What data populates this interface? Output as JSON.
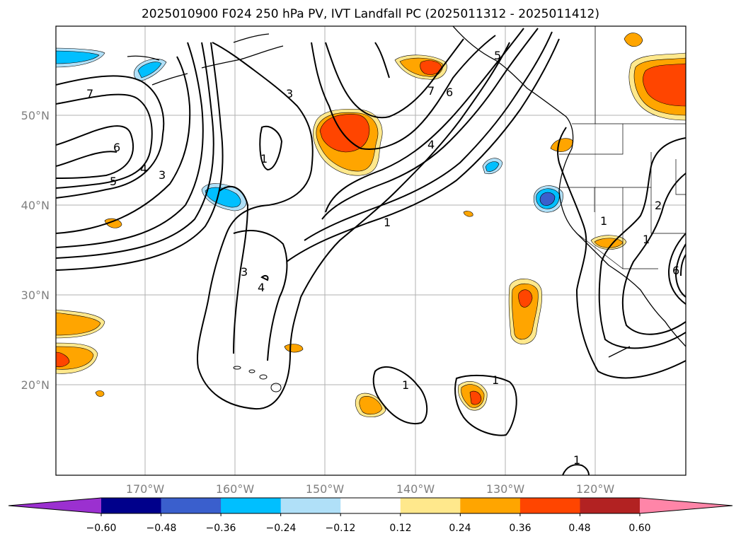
{
  "title": "2025010900 F024 250 hPa PV, IVT Landfall PC (2025011312 - 2025011412)",
  "map": {
    "lon_labels": [
      "170°W",
      "160°W",
      "150°W",
      "140°W",
      "130°W",
      "120°W"
    ],
    "lat_labels": [
      "50°N",
      "40°N",
      "30°N",
      "20°N"
    ],
    "contour_labels": [
      "7",
      "6",
      "5",
      "4",
      "3",
      "3",
      "1",
      "3",
      "4",
      "1",
      "4",
      "6",
      "7",
      "5",
      "1",
      "1",
      "1",
      "1",
      "1",
      "2",
      "6"
    ]
  },
  "colorbar": {
    "ticks": [
      "−0.60",
      "−0.48",
      "−0.36",
      "−0.24",
      "−0.12",
      "0.12",
      "0.24",
      "0.36",
      "0.48",
      "0.60"
    ],
    "colors": [
      "#9b30d0",
      "#00008b",
      "#3a5fcd",
      "#00bfff",
      "#b0e0f8",
      "#ffffff",
      "#ffe88c",
      "#ffa500",
      "#ff4500",
      "#b22222",
      "#ff85a8"
    ]
  },
  "colors": {
    "pos1": "#ffe88c",
    "pos2": "#ffa500",
    "pos3": "#ff4500",
    "neg1": "#b0e0f8",
    "neg2": "#00bfff",
    "neg3": "#3a5fcd"
  }
}
